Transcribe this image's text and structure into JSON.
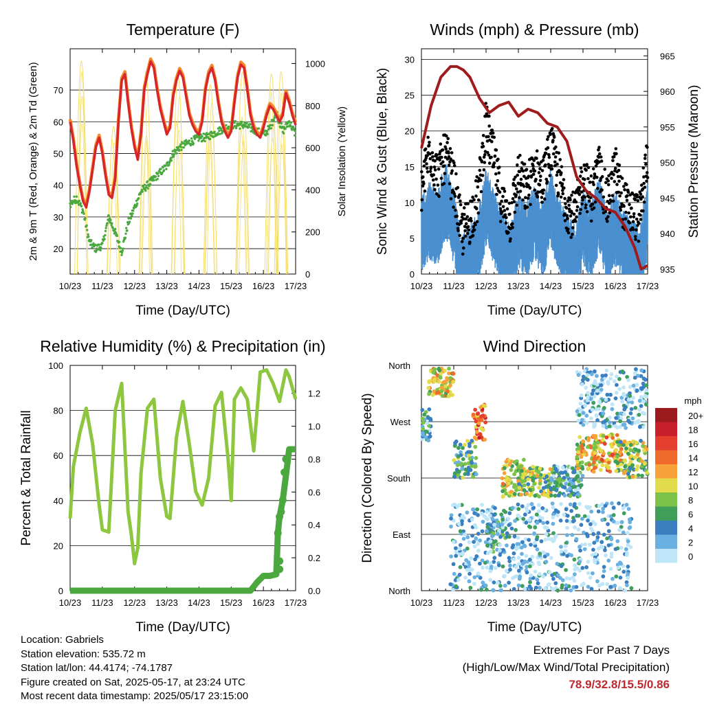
{
  "chart_data": [
    {
      "type": "line",
      "title": "Temperature (F)",
      "xlabel": "Time (Day/UTC)",
      "ylabel": "2m & 9m T (Red, Orange) & 2m Td (Green)",
      "y2label": "Solar Insolation (Yellow)",
      "xticks": [
        "10/23",
        "11/23",
        "12/23",
        "13/23",
        "14/23",
        "15/23",
        "16/23",
        "17/23"
      ],
      "ylim": [
        12,
        83
      ],
      "yticks": [
        20,
        30,
        40,
        50,
        60,
        70
      ],
      "y2lim": [
        0,
        1070
      ],
      "y2ticks": [
        0,
        200,
        400,
        600,
        800,
        1000
      ],
      "colors": {
        "t2m": "#d6262b",
        "t9m": "#f4882d",
        "td2m": "#4aa83f",
        "solar": "#f6de6a"
      },
      "series": [
        {
          "name": "2m T",
          "color": "#d6262b",
          "x": [
            0,
            0.1,
            0.2,
            0.3,
            0.4,
            0.5,
            0.6,
            0.7,
            0.8,
            0.9,
            1.0,
            1.1,
            1.2,
            1.3,
            1.4,
            1.5,
            1.6,
            1.7,
            1.8,
            1.9,
            2.0,
            2.1,
            2.2,
            2.3,
            2.4,
            2.5,
            2.6,
            2.7,
            2.8,
            2.9,
            3.0,
            3.1,
            3.2,
            3.3,
            3.4,
            3.5,
            3.6,
            3.7,
            3.8,
            3.9,
            4.0,
            4.1,
            4.2,
            4.3,
            4.4,
            4.5,
            4.6,
            4.7,
            4.8,
            4.9,
            5.0,
            5.1,
            5.2,
            5.3,
            5.4,
            5.5,
            5.6,
            5.7,
            5.8,
            5.9,
            6.0,
            6.1,
            6.2,
            6.3,
            6.4,
            6.5,
            6.6,
            6.7,
            6.8,
            6.9,
            7.0
          ],
          "y": [
            60,
            54,
            46,
            40,
            35,
            33,
            38,
            45,
            52,
            55,
            50,
            43,
            37,
            36,
            42,
            60,
            73,
            75,
            66,
            58,
            52,
            48,
            56,
            70,
            75,
            79,
            77,
            70,
            64,
            60,
            56,
            58,
            68,
            73,
            76,
            74,
            68,
            62,
            59,
            57,
            56,
            60,
            70,
            75,
            77,
            73,
            66,
            60,
            57,
            55,
            57,
            66,
            74,
            78,
            77,
            70,
            62,
            58,
            56,
            55,
            58,
            62,
            65,
            64,
            62,
            60,
            62,
            69,
            66,
            62,
            59
          ]
        },
        {
          "name": "2m Td",
          "color": "#4aa83f",
          "x": [
            0,
            0.2,
            0.4,
            0.6,
            0.8,
            1.0,
            1.2,
            1.4,
            1.6,
            1.8,
            2.0,
            2.2,
            2.4,
            2.6,
            2.8,
            3.0,
            3.2,
            3.4,
            3.6,
            3.8,
            4.0,
            4.2,
            4.4,
            4.6,
            4.8,
            5.0,
            5.2,
            5.4,
            5.6,
            5.8,
            6.0,
            6.2,
            6.4,
            6.6,
            6.8,
            7.0
          ],
          "y": [
            34,
            36,
            32,
            22,
            20,
            21,
            30,
            25,
            19,
            28,
            33,
            38,
            40,
            42,
            44,
            46,
            50,
            52,
            53,
            54,
            55,
            55,
            56,
            57,
            58,
            59,
            59,
            59,
            58,
            57,
            56,
            58,
            63,
            57,
            60,
            56
          ]
        },
        {
          "name": "Solar Insolation",
          "color": "#f6de6a",
          "axis": "y2",
          "peaks": [
            {
              "x": 0.35,
              "peak": 1010
            },
            {
              "x": 1.35,
              "peak": 700
            },
            {
              "x": 2.35,
              "peak": 960
            },
            {
              "x": 3.35,
              "peak": 940
            },
            {
              "x": 4.35,
              "peak": 900
            },
            {
              "x": 5.35,
              "peak": 960
            },
            {
              "x": 6.25,
              "peak": 950
            },
            {
              "x": 6.55,
              "peak": 960
            }
          ]
        }
      ]
    },
    {
      "type": "scatter",
      "title": "Winds (mph) & Pressure (mb)",
      "xlabel": "Time (Day/UTC)",
      "ylabel": "Sonic Wind & Gust (Blue, Black)",
      "y2label": "Station Pressure (Maroon)",
      "xticks": [
        "10/23",
        "11/23",
        "12/23",
        "13/23",
        "14/23",
        "15/23",
        "16/23",
        "17/23"
      ],
      "ylim": [
        0,
        31.5
      ],
      "yticks": [
        0,
        5,
        10,
        15,
        20,
        25,
        30
      ],
      "y2lim": [
        934.3,
        966
      ],
      "y2ticks": [
        935,
        940,
        945,
        950,
        955,
        960,
        965
      ],
      "series": [
        {
          "name": "Sonic Wind",
          "color": "#4a90d0",
          "x": [
            0,
            0.25,
            0.5,
            0.75,
            1.0,
            1.25,
            1.5,
            1.75,
            2.0,
            2.25,
            2.5,
            2.75,
            3.0,
            3.25,
            3.5,
            3.75,
            4.0,
            4.25,
            4.5,
            4.75,
            5.0,
            5.25,
            5.5,
            5.75,
            6.0,
            6.25,
            6.5,
            6.75,
            7.0
          ],
          "y": [
            8,
            10,
            9,
            13,
            9,
            3,
            4,
            6,
            12,
            9,
            6,
            4,
            9,
            7,
            10,
            7,
            12,
            8,
            6,
            4,
            9,
            7,
            11,
            6,
            9,
            6,
            5,
            4,
            10
          ]
        },
        {
          "name": "Gust",
          "color": "#000000",
          "x": [
            0,
            0.25,
            0.5,
            0.75,
            1.0,
            1.25,
            1.5,
            1.75,
            2.0,
            2.25,
            2.5,
            2.75,
            3.0,
            3.25,
            3.5,
            3.75,
            4.0,
            4.25,
            4.5,
            4.75,
            5.0,
            5.25,
            5.5,
            5.75,
            6.0,
            6.25,
            6.5,
            6.75,
            7.0
          ],
          "y": [
            12,
            18,
            14,
            17,
            13,
            6,
            8,
            11,
            21,
            16,
            10,
            8,
            14,
            12,
            15,
            13,
            18,
            14,
            10,
            8,
            14,
            11,
            15,
            10,
            15,
            10,
            9,
            8,
            17
          ]
        },
        {
          "name": "Station Pressure",
          "color": "#a01c1c",
          "axis": "y2",
          "x": [
            0,
            0.3,
            0.6,
            0.9,
            1.1,
            1.3,
            1.5,
            1.8,
            2.1,
            2.4,
            2.7,
            3.0,
            3.3,
            3.6,
            3.9,
            4.2,
            4.5,
            4.8,
            5.1,
            5.4,
            5.7,
            6.0,
            6.3,
            6.6,
            6.8,
            7.0
          ],
          "y": [
            952,
            958,
            962,
            963.5,
            963.5,
            963,
            962,
            959,
            957,
            958,
            958.5,
            956.5,
            957.5,
            957,
            955.5,
            955,
            953,
            948,
            946,
            945,
            943.5,
            943,
            941,
            938,
            935,
            935.5
          ]
        }
      ]
    },
    {
      "type": "line",
      "title": "Relative Humidity (%) & Precipitation (in)",
      "xlabel": "Time (Day/UTC)",
      "ylabel": "Percent & Total Rainfall",
      "xticks": [
        "10/23",
        "11/23",
        "12/23",
        "13/23",
        "14/23",
        "15/23",
        "16/23",
        "17/23"
      ],
      "ylim": [
        0,
        100
      ],
      "yticks": [
        0,
        20,
        40,
        60,
        80,
        100
      ],
      "y2lim": [
        0,
        1.37
      ],
      "y2ticks": [
        0.0,
        0.2,
        0.4,
        0.6,
        0.8,
        1.0,
        1.2
      ],
      "series": [
        {
          "name": "RH",
          "color": "#8dc63f",
          "x": [
            0,
            0.1,
            0.3,
            0.5,
            0.7,
            0.9,
            1.0,
            1.2,
            1.4,
            1.6,
            1.8,
            1.9,
            2.0,
            2.1,
            2.2,
            2.4,
            2.6,
            2.8,
            3.0,
            3.1,
            3.3,
            3.5,
            3.7,
            3.9,
            4.1,
            4.3,
            4.5,
            4.7,
            4.9,
            5.0,
            5.1,
            5.3,
            5.5,
            5.7,
            5.9,
            6.1,
            6.3,
            6.5,
            6.7,
            6.8,
            7.0
          ],
          "y": [
            32,
            55,
            70,
            81,
            65,
            38,
            27,
            26,
            80,
            92,
            35,
            25,
            12,
            19,
            52,
            81,
            85,
            50,
            33,
            32,
            68,
            84,
            65,
            44,
            38,
            50,
            82,
            88,
            59,
            40,
            85,
            90,
            85,
            62,
            97,
            98,
            92,
            84,
            98,
            95,
            85
          ]
        },
        {
          "name": "Total Precipitation",
          "color": "#4aa83f",
          "axis": "y2",
          "x": [
            0,
            1,
            2,
            3,
            4,
            5,
            5.6,
            5.8,
            6.0,
            6.2,
            6.4,
            6.45,
            6.5,
            6.6,
            6.7,
            6.8,
            7.0
          ],
          "y": [
            0,
            0,
            0,
            0,
            0,
            0,
            0,
            0.05,
            0.09,
            0.09,
            0.1,
            0.35,
            0.45,
            0.55,
            0.7,
            0.86,
            0.86
          ]
        }
      ]
    },
    {
      "type": "scatter",
      "title": "Wind Direction",
      "xlabel": "Time (Day/UTC)",
      "ylabel": "Direction (Colored By Speed)",
      "xticks": [
        "10/23",
        "11/23",
        "12/23",
        "13/23",
        "14/23",
        "15/23",
        "16/23",
        "17/23"
      ],
      "ycategories": [
        "North",
        "East",
        "South",
        "West",
        "North"
      ],
      "ylim": [
        0,
        360
      ],
      "legend": {
        "unit": "mph",
        "position": "right",
        "levels": [
          "20+",
          "18",
          "16",
          "14",
          "12",
          "10",
          "8",
          "6",
          "4",
          "2",
          "0"
        ],
        "colors": [
          "#9a1a1e",
          "#c8202a",
          "#e43e2e",
          "#f06a2c",
          "#f7a23a",
          "#e3dc4a",
          "#7bc24a",
          "#3e9e5a",
          "#3a7fc0",
          "#6ab0e0",
          "#bfe6f8"
        ]
      },
      "clusters": [
        {
          "x0": 0.0,
          "x1": 0.3,
          "d0": 240,
          "d1": 290,
          "speed": 4
        },
        {
          "x0": 0.2,
          "x1": 1.0,
          "d0": 310,
          "d1": 355,
          "speed": 10
        },
        {
          "x0": 1.0,
          "x1": 1.7,
          "d0": 180,
          "d1": 240,
          "speed": 6
        },
        {
          "x0": 1.6,
          "x1": 2.0,
          "d0": 240,
          "d1": 300,
          "speed": 14
        },
        {
          "x0": 2.1,
          "x1": 2.6,
          "d0": 60,
          "d1": 130,
          "speed": 4
        },
        {
          "x0": 2.5,
          "x1": 3.2,
          "d0": 150,
          "d1": 210,
          "speed": 10
        },
        {
          "x0": 3.0,
          "x1": 4.0,
          "d0": 150,
          "d1": 200,
          "speed": 8
        },
        {
          "x0": 4.0,
          "x1": 5.0,
          "d0": 150,
          "d1": 200,
          "speed": 4
        },
        {
          "x0": 4.8,
          "x1": 5.4,
          "d0": 190,
          "d1": 250,
          "speed": 10
        },
        {
          "x0": 5.3,
          "x1": 6.2,
          "d0": 190,
          "d1": 250,
          "speed": 12
        },
        {
          "x0": 6.0,
          "x1": 7.0,
          "d0": 180,
          "d1": 240,
          "speed": 8
        },
        {
          "x0": 4.8,
          "x1": 7.0,
          "d0": 260,
          "d1": 355,
          "speed": 2
        },
        {
          "x0": 0.9,
          "x1": 6.5,
          "d0": 0,
          "d1": 140,
          "speed": 2
        }
      ]
    }
  ],
  "info": {
    "location": "Location: Gabriels",
    "elevation": "Station elevation: 535.72 m",
    "latlon": "Station lat/lon: 44.4174; -74.1787",
    "created": "Figure created on Sat, 2025-05-17, at 23:24 UTC",
    "recent": "Most recent data timestamp: 2025/05/17 23:15:00"
  },
  "extremes": {
    "title": "Extremes For Past 7 Days",
    "subtitle": "(High/Low/Max Wind/Total Precipitation)",
    "values": "78.9/32.8/15.5/0.86"
  }
}
